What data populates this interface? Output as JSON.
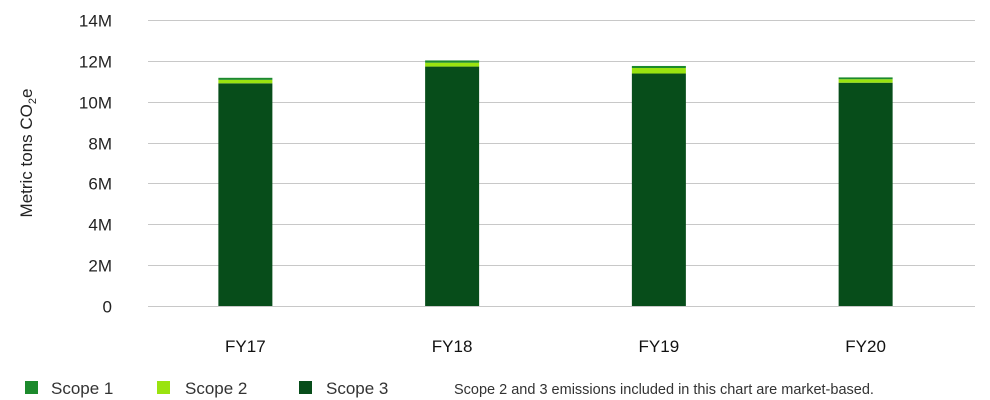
{
  "colors": {
    "scope1": "#1c8a2c",
    "scope2": "#9ae30f",
    "scope3": "#074d1a",
    "grid": "#c8c8c8"
  },
  "chart_data": {
    "type": "bar",
    "stacked": true,
    "categories": [
      "FY17",
      "FY18",
      "FY19",
      "FY20"
    ],
    "series": [
      {
        "name": "Scope 3",
        "values": [
          10900000,
          11720000,
          11380000,
          10930000
        ]
      },
      {
        "name": "Scope 2",
        "values": [
          170000,
          190000,
          270000,
          170000
        ]
      },
      {
        "name": "Scope 1",
        "values": [
          100000,
          110000,
          100000,
          90000
        ]
      }
    ],
    "ylabel_main": "Metric tons CO",
    "ylabel_sub": "2",
    "ylabel_tail": "e",
    "ylim": [
      0,
      14000000
    ],
    "yticks": [
      0,
      2000000,
      4000000,
      6000000,
      8000000,
      10000000,
      12000000,
      14000000
    ],
    "ytick_labels": [
      "0",
      "2M",
      "4M",
      "6M",
      "8M",
      "10M",
      "12M",
      "14M"
    ],
    "grid": true,
    "legend": [
      "Scope 1",
      "Scope 2",
      "Scope 3"
    ],
    "legend_position": "bottom-left",
    "note": "Scope 2 and 3 emissions included in this chart are market-based."
  }
}
